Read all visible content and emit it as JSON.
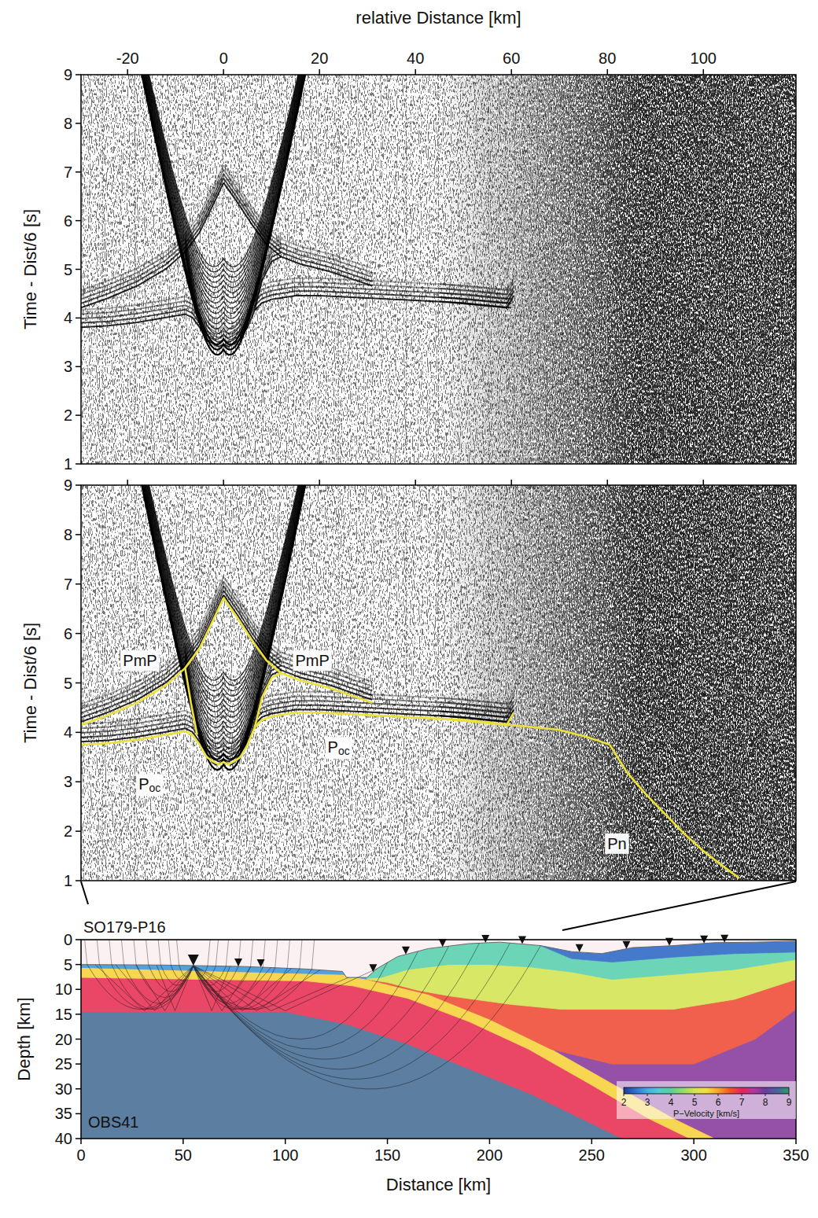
{
  "chart_data": [
    {
      "type": "record_section",
      "x_label": "relative Distance [km]",
      "y_label": "Time - Dist/6 [s]",
      "xlim": [
        -29.7,
        119.3
      ],
      "xticks": [
        -20,
        0,
        20,
        40,
        60,
        80,
        100
      ],
      "ylim": [
        1,
        9
      ],
      "yticks": [
        1,
        2,
        3,
        4,
        5,
        6,
        7,
        8,
        9
      ]
    },
    {
      "type": "record_section",
      "y_label": "Time - Dist/6 [s]",
      "xlim": [
        -29.7,
        119.3
      ],
      "xticks": [
        -20,
        0,
        20,
        40,
        60,
        80,
        100
      ],
      "tick_labels": "y",
      "ylim": [
        1,
        9
      ],
      "yticks": [
        1,
        2,
        3,
        4,
        5,
        6,
        7,
        8,
        9
      ],
      "color": "#ece03a",
      "series": [
        {
          "x": [
            -29.7,
            -24,
            -18,
            -12,
            -8,
            -5,
            -2.5,
            0
          ],
          "values": [
            4.15,
            4.35,
            4.6,
            4.95,
            5.3,
            5.7,
            6.2,
            6.72
          ]
        },
        {
          "x": [
            0,
            3,
            6,
            9,
            12,
            16,
            22,
            28,
            31
          ],
          "values": [
            6.72,
            6.3,
            5.85,
            5.45,
            5.2,
            5.05,
            4.9,
            4.7,
            4.6
          ]
        },
        {
          "x": [
            -29.7,
            -24,
            -18,
            -12,
            -8,
            -6.5,
            -5,
            -3.5,
            -2,
            -1,
            0,
            1,
            2,
            3.5,
            5,
            6.5,
            8,
            10
          ],
          "values": [
            3.75,
            3.78,
            3.85,
            3.95,
            4.02,
            3.95,
            3.75,
            3.5,
            3.4,
            3.35,
            3.4,
            3.35,
            3.4,
            3.5,
            3.75,
            4.1,
            4.25,
            4.32
          ]
        },
        {
          "x": [
            10,
            15,
            20,
            30,
            40,
            50,
            60,
            70,
            76,
            80.5
          ],
          "values": [
            4.32,
            4.4,
            4.4,
            4.35,
            4.3,
            4.25,
            4.15,
            4.05,
            3.9,
            3.75
          ]
        },
        {
          "x": [
            80.5,
            84,
            88,
            92,
            96,
            100,
            104,
            107.5
          ],
          "values": [
            3.75,
            3.2,
            2.75,
            2.35,
            1.95,
            1.6,
            1.3,
            1.05
          ]
        },
        {
          "x": [
            -8,
            -6.8,
            -5.5
          ],
          "values": [
            5.3,
            4.6,
            3.95
          ]
        },
        {
          "x": [
            6.5,
            8,
            10,
            12
          ],
          "values": [
            4.1,
            4.7,
            5.1,
            5.2
          ]
        },
        {
          "x": [
            45,
            59,
            60.5
          ],
          "values": [
            4.28,
            4.15,
            4.4
          ]
        }
      ],
      "annotations": [
        {
          "text": "PmP",
          "x": -17.4,
          "y": 5.45
        },
        {
          "text": "PmP",
          "x": 18.5,
          "y": 5.45
        },
        {
          "text": "Poc",
          "x": -15.4,
          "y": 2.95
        },
        {
          "text": "Poc",
          "x": 24,
          "y": 3.7
        },
        {
          "text": "Pn",
          "x": 82,
          "y": 1.75
        }
      ]
    },
    {
      "type": "velocity_model",
      "title": "SO179-P16",
      "x_label": "Distance [km]",
      "y_label": "Depth [km]",
      "xlim": [
        0,
        350
      ],
      "xticks": [
        0,
        50,
        100,
        150,
        200,
        250,
        300,
        350
      ],
      "ylim": [
        0,
        40
      ],
      "yticks": [
        0,
        5,
        10,
        15,
        20,
        25,
        30,
        35,
        40
      ],
      "station_label": "OBS41",
      "station_x": 55,
      "stations": [
        55,
        77,
        88,
        143,
        159,
        177,
        198,
        216,
        244,
        267,
        288,
        305,
        315
      ],
      "seafloor": {
        "x": [
          0,
          40,
          80,
          110,
          128,
          130,
          140,
          145,
          155,
          170,
          190,
          205,
          225,
          240,
          255,
          270,
          290,
          310,
          330,
          350
        ],
        "depth": [
          5.0,
          5.1,
          5.4,
          5.9,
          6.4,
          7.6,
          7.6,
          5.8,
          3.4,
          1.8,
          0.8,
          0.5,
          1.2,
          2.4,
          2.8,
          1.6,
          1.2,
          0.6,
          0.5,
          0.3
        ]
      },
      "layers": [
        {
          "velocity": 8.6,
          "outline": [
            [
              0,
              0
            ],
            [
              350,
              0
            ],
            [
              350,
              40
            ],
            [
              0,
              40
            ]
          ]
        },
        {
          "velocity": 7.8,
          "outline": [
            [
              230,
              22
            ],
            [
              260,
              29
            ],
            [
              290,
              36
            ],
            [
              310,
              40
            ],
            [
              350,
              40
            ],
            [
              350,
              14
            ],
            [
              330,
              20
            ],
            [
              300,
              25
            ],
            [
              260,
              25
            ]
          ]
        },
        {
          "velocity": 6.9,
          "outline": [
            [
              0,
              5.6
            ],
            [
              128,
              7.0
            ],
            [
              140,
              8
            ],
            [
              170,
              11
            ],
            [
              200,
              16
            ],
            [
              230,
              22
            ],
            [
              260,
              29
            ],
            [
              290,
              36
            ],
            [
              310,
              40
            ],
            [
              265,
              40
            ],
            [
              250,
              37
            ],
            [
              220,
              31
            ],
            [
              190,
              26
            ],
            [
              160,
              21
            ],
            [
              130,
              17
            ],
            [
              100,
              14.5
            ],
            [
              0,
              14.5
            ]
          ]
        },
        {
          "velocity": 5.6,
          "outline": [
            [
              0,
              5.6
            ],
            [
              128,
              7.0
            ],
            [
              140,
              8
            ],
            [
              170,
              11
            ],
            [
              200,
              16
            ],
            [
              230,
              22
            ],
            [
              260,
              29
            ],
            [
              290,
              36
            ],
            [
              310,
              40
            ],
            [
              298,
              40
            ],
            [
              278,
              36
            ],
            [
              249,
              29
            ],
            [
              219,
              22
            ],
            [
              190,
              16.5
            ],
            [
              160,
              11.8
            ],
            [
              133,
              9.3
            ],
            [
              110,
              8.3
            ],
            [
              0,
              7.6
            ]
          ]
        },
        {
          "velocity": 2.8,
          "outline": [
            [
              0,
              5.0
            ],
            [
              40,
              5.1
            ],
            [
              80,
              5.4
            ],
            [
              110,
              5.9
            ],
            [
              128,
              6.4
            ],
            [
              130,
              7.6
            ],
            [
              140,
              7.6
            ],
            [
              140,
              8
            ],
            [
              128,
              7.0
            ],
            [
              0,
              5.6
            ]
          ]
        },
        {
          "velocity": 6.6,
          "outline": [
            [
              140,
              7.6
            ],
            [
              145,
              5.8
            ],
            [
              155,
              3.4
            ],
            [
              170,
              1.8
            ],
            [
              190,
              0.8
            ],
            [
              205,
              0.5
            ],
            [
              225,
              1.2
            ],
            [
              240,
              2.4
            ],
            [
              255,
              2.8
            ],
            [
              270,
              1.6
            ],
            [
              290,
              1.2
            ],
            [
              310,
              0.6
            ],
            [
              330,
              0.5
            ],
            [
              350,
              0.3
            ],
            [
              350,
              14
            ],
            [
              330,
              20
            ],
            [
              300,
              25
            ],
            [
              260,
              25
            ],
            [
              230,
              22
            ],
            [
              200,
              16
            ],
            [
              170,
              11
            ],
            [
              140,
              8
            ]
          ]
        },
        {
          "velocity": 5.0,
          "outline": [
            [
              140,
              7.6
            ],
            [
              145,
              5.8
            ],
            [
              155,
              3.4
            ],
            [
              170,
              1.8
            ],
            [
              190,
              0.8
            ],
            [
              205,
              0.5
            ],
            [
              225,
              1.2
            ],
            [
              240,
              2.4
            ],
            [
              255,
              2.8
            ],
            [
              270,
              1.6
            ],
            [
              290,
              1.2
            ],
            [
              310,
              0.6
            ],
            [
              330,
              0.5
            ],
            [
              350,
              0.3
            ],
            [
              350,
              8
            ],
            [
              320,
              12
            ],
            [
              290,
              14
            ],
            [
              260,
              14
            ],
            [
              235,
              14
            ],
            [
              210,
              13
            ],
            [
              180,
              11.3
            ],
            [
              165,
              10.2
            ],
            [
              150,
              8.6
            ],
            [
              140,
              8
            ]
          ]
        },
        {
          "velocity": 3.8,
          "outline": [
            [
              140,
              7.6
            ],
            [
              145,
              5.8
            ],
            [
              155,
              3.4
            ],
            [
              170,
              1.8
            ],
            [
              190,
              0.8
            ],
            [
              205,
              0.5
            ],
            [
              225,
              1.2
            ],
            [
              240,
              2.4
            ],
            [
              255,
              2.8
            ],
            [
              270,
              1.6
            ],
            [
              290,
              1.2
            ],
            [
              310,
              0.6
            ],
            [
              330,
              0.5
            ],
            [
              350,
              0.3
            ],
            [
              350,
              4
            ],
            [
              320,
              6
            ],
            [
              290,
              7
            ],
            [
              260,
              8
            ],
            [
              240,
              6.5
            ],
            [
              220,
              5.5
            ],
            [
              200,
              5
            ],
            [
              180,
              5
            ],
            [
              160,
              6
            ],
            [
              147,
              7.6
            ],
            [
              140,
              7.8
            ]
          ]
        },
        {
          "velocity": 2.4,
          "outline": [
            [
              225,
              1.2
            ],
            [
              240,
              2.4
            ],
            [
              255,
              2.8
            ],
            [
              270,
              1.6
            ],
            [
              290,
              1.2
            ],
            [
              310,
              0.6
            ],
            [
              330,
              0.5
            ],
            [
              350,
              0.3
            ],
            [
              350,
              2.5
            ],
            [
              320,
              2.8
            ],
            [
              290,
              3.5
            ],
            [
              260,
              4.5
            ],
            [
              240,
              3.8
            ]
          ]
        }
      ],
      "colorbar": {
        "label": "P−Velocity [km/s]",
        "range": [
          2,
          9
        ],
        "ticks": [
          2,
          3,
          4,
          5,
          6,
          7,
          8,
          9
        ]
      }
    }
  ]
}
